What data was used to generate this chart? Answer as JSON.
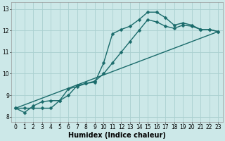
{
  "xlabel": "Humidex (Indice chaleur)",
  "bg_color": "#cce8e8",
  "grid_color": "#aad0d0",
  "line_color": "#1a6b6b",
  "xlim": [
    -0.5,
    23.5
  ],
  "ylim": [
    7.75,
    13.3
  ],
  "xticks": [
    0,
    1,
    2,
    3,
    4,
    5,
    6,
    7,
    8,
    9,
    10,
    11,
    12,
    13,
    14,
    15,
    16,
    17,
    18,
    19,
    20,
    21,
    22,
    23
  ],
  "yticks": [
    8,
    9,
    10,
    11,
    12,
    13
  ],
  "line1_x": [
    0,
    1,
    2,
    3,
    4,
    5,
    6,
    7,
    8,
    9,
    10,
    11,
    12,
    13,
    14,
    15,
    16,
    17,
    18,
    19,
    20,
    21,
    22,
    23
  ],
  "line1_y": [
    8.4,
    8.2,
    8.5,
    8.7,
    8.75,
    8.75,
    9.3,
    9.4,
    9.55,
    9.6,
    10.5,
    11.85,
    12.05,
    12.2,
    12.5,
    12.85,
    12.85,
    12.6,
    12.25,
    12.35,
    12.25,
    12.05,
    12.05,
    11.95
  ],
  "line2_x": [
    0,
    1,
    2,
    3,
    4,
    5,
    6,
    7,
    8,
    9,
    10,
    11,
    12,
    13,
    14,
    15,
    16,
    17,
    18,
    19,
    20,
    21,
    22,
    23
  ],
  "line2_y": [
    8.4,
    8.4,
    8.4,
    8.4,
    8.4,
    8.75,
    9.0,
    9.45,
    9.55,
    9.65,
    10.0,
    10.5,
    11.0,
    11.5,
    12.0,
    12.5,
    12.4,
    12.2,
    12.1,
    12.25,
    12.2,
    12.05,
    12.05,
    11.95
  ],
  "line3_x": [
    0,
    23
  ],
  "line3_y": [
    8.4,
    11.95
  ],
  "marker_size": 2.5,
  "line_width": 1.0,
  "xlabel_fontsize": 7,
  "tick_fontsize": 5.5
}
